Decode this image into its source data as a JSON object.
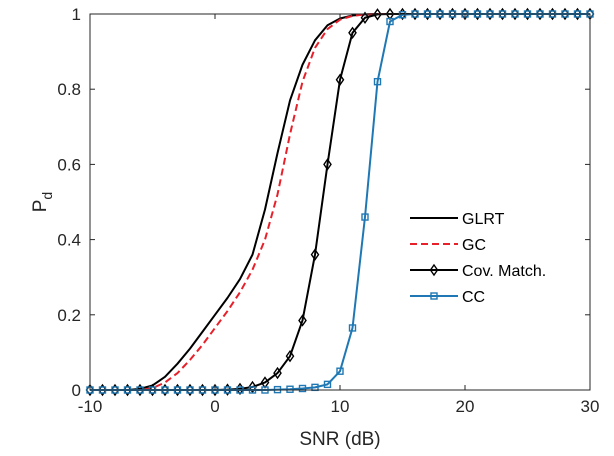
{
  "chart_data": {
    "type": "line",
    "title": "",
    "xlabel": "SNR (dB)",
    "ylabel_main": "P",
    "ylabel_sub": "d",
    "xlim": [
      -10,
      30
    ],
    "ylim": [
      0,
      1
    ],
    "xticks": [
      -10,
      0,
      10,
      20,
      30
    ],
    "yticks": [
      0,
      0.2,
      0.4,
      0.6,
      0.8,
      1
    ],
    "xtick_labels": [
      "-10",
      "0",
      "10",
      "20",
      "30"
    ],
    "ytick_labels": [
      "0",
      "0.2",
      "0.4",
      "0.6",
      "0.8",
      "1"
    ],
    "grid": false,
    "legend_position": "center-right",
    "series": [
      {
        "name": "GLRT",
        "color": "#000000",
        "dash": "solid",
        "marker": "none",
        "x": [
          -10,
          -9,
          -8,
          -7,
          -6,
          -5,
          -4,
          -3,
          -2,
          -1,
          0,
          1,
          2,
          3,
          4,
          5,
          6,
          7,
          8,
          9,
          10,
          11,
          12,
          13,
          14,
          15,
          16,
          17,
          18,
          19,
          20,
          21,
          22,
          23,
          24,
          25,
          26,
          27,
          28,
          29,
          30
        ],
        "y": [
          0,
          0,
          0,
          0,
          0.003,
          0.012,
          0.035,
          0.07,
          0.11,
          0.155,
          0.2,
          0.245,
          0.295,
          0.36,
          0.48,
          0.63,
          0.77,
          0.865,
          0.93,
          0.97,
          0.988,
          0.996,
          0.999,
          1,
          1,
          1,
          1,
          1,
          1,
          1,
          1,
          1,
          1,
          1,
          1,
          1,
          1,
          1,
          1,
          1,
          1
        ]
      },
      {
        "name": "GC",
        "color": "#e8202a",
        "dash": "dashed",
        "marker": "none",
        "x": [
          -10,
          -9,
          -8,
          -7,
          -6,
          -5,
          -4,
          -3,
          -2,
          -1,
          0,
          1,
          2,
          3,
          4,
          5,
          6,
          7,
          8,
          9,
          10,
          11,
          12,
          13,
          14,
          15,
          16,
          17,
          18,
          19,
          20,
          21,
          22,
          23,
          24,
          25,
          26,
          27,
          28,
          29,
          30
        ],
        "y": [
          0,
          0,
          0,
          0,
          0,
          0.005,
          0.02,
          0.045,
          0.08,
          0.12,
          0.165,
          0.21,
          0.26,
          0.32,
          0.4,
          0.52,
          0.68,
          0.82,
          0.91,
          0.96,
          0.985,
          0.995,
          0.999,
          1,
          1,
          1,
          1,
          1,
          1,
          1,
          1,
          1,
          1,
          1,
          1,
          1,
          1,
          1,
          1,
          1,
          1
        ]
      },
      {
        "name": "Cov. Match.",
        "color": "#000000",
        "dash": "solid",
        "marker": "diamond",
        "x": [
          -10,
          -9,
          -8,
          -7,
          -6,
          -5,
          -4,
          -3,
          -2,
          -1,
          0,
          1,
          2,
          3,
          4,
          5,
          6,
          7,
          8,
          9,
          10,
          11,
          12,
          13,
          14,
          15,
          16,
          17,
          18,
          19,
          20,
          21,
          22,
          23,
          24,
          25,
          26,
          27,
          28,
          29,
          30
        ],
        "y": [
          0,
          0,
          0,
          0,
          0,
          0,
          0,
          0,
          0,
          0,
          0,
          0.001,
          0.003,
          0.008,
          0.02,
          0.045,
          0.09,
          0.185,
          0.36,
          0.6,
          0.825,
          0.95,
          0.99,
          0.999,
          1,
          1,
          1,
          1,
          1,
          1,
          1,
          1,
          1,
          1,
          1,
          1,
          1,
          1,
          1,
          1,
          1
        ]
      },
      {
        "name": "CC",
        "color": "#1f78b4",
        "dash": "solid",
        "marker": "square",
        "x": [
          -10,
          -9,
          -8,
          -7,
          -6,
          -5,
          -4,
          -3,
          -2,
          -1,
          0,
          1,
          2,
          3,
          4,
          5,
          6,
          7,
          8,
          9,
          10,
          11,
          12,
          13,
          14,
          15,
          16,
          17,
          18,
          19,
          20,
          21,
          22,
          23,
          24,
          25,
          26,
          27,
          28,
          29,
          30
        ],
        "y": [
          0,
          0,
          0,
          0,
          0,
          0,
          0,
          0,
          0,
          0,
          0,
          0,
          0,
          0,
          0,
          0.001,
          0.002,
          0.004,
          0.007,
          0.015,
          0.05,
          0.165,
          0.46,
          0.82,
          0.98,
          0.998,
          1,
          1,
          1,
          1,
          1,
          1,
          1,
          1,
          1,
          1,
          1,
          1,
          1,
          1,
          1
        ]
      }
    ]
  }
}
